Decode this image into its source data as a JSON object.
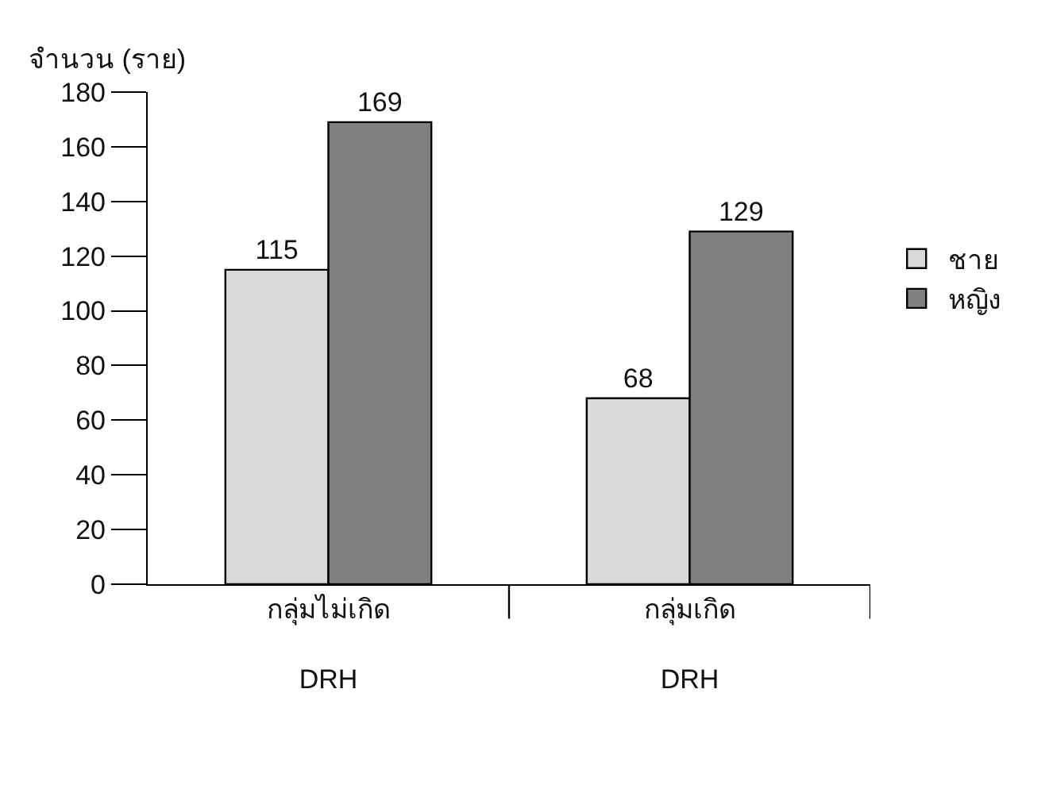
{
  "chart_data": {
    "type": "bar",
    "ylabel": "จำนวน (ราย)",
    "categories": [
      "กลุ่มไม่เกิด\nDRH",
      "กลุ่มเกิด\nDRH"
    ],
    "series": [
      {
        "name": "ชาย",
        "color": "#d9d9d9",
        "values": [
          115,
          68
        ]
      },
      {
        "name": "หญิง",
        "color": "#7f7f7f",
        "values": [
          169,
          129
        ]
      }
    ],
    "ylim": [
      0,
      180
    ],
    "yticks": [
      0,
      20,
      40,
      60,
      80,
      100,
      120,
      140,
      160,
      180
    ],
    "grid": false,
    "legend": "right",
    "data_labels": true
  }
}
